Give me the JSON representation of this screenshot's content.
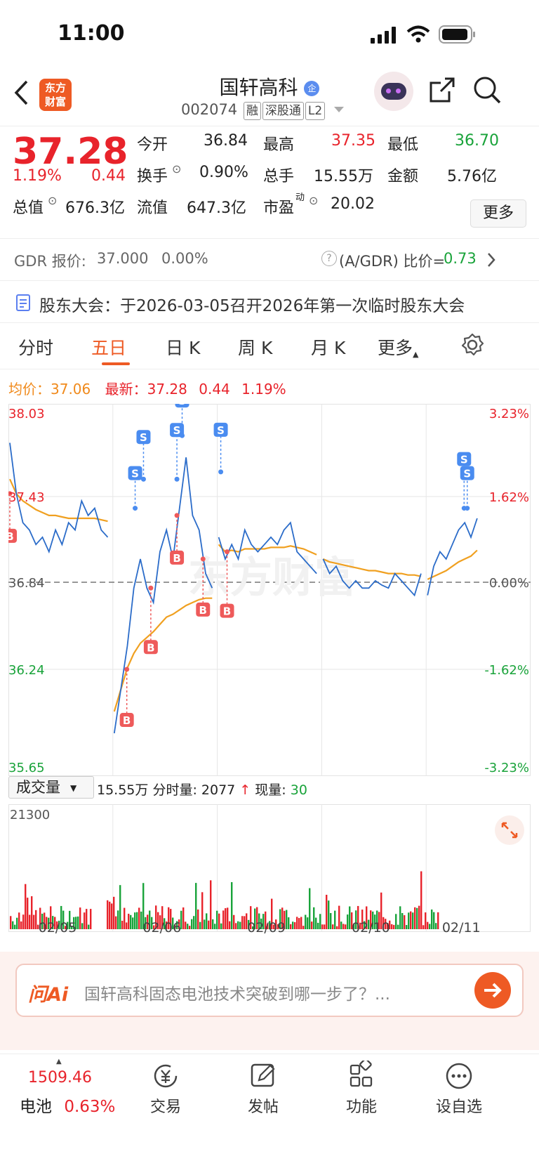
{
  "status": {
    "time": "11:00"
  },
  "nav": {
    "back_icon": "back-arrow-icon",
    "logo_text": "东方财富",
    "stock_name": "国轩高科",
    "stock_code": "002074",
    "tags": [
      "融",
      "深股通",
      "L2"
    ]
  },
  "quote": {
    "price": "37.28",
    "change_pct": "1.19%",
    "change": "0.44",
    "open_label": "今开",
    "open": "36.84",
    "high_label": "最高",
    "high": "37.35",
    "low_label": "最低",
    "low": "36.70",
    "turnover_label": "换手",
    "turnover": "0.90%",
    "vol_label": "总手",
    "vol": "15.55万",
    "amount_label": "金额",
    "amount": "5.76亿",
    "mktcap_label": "总值",
    "mktcap": "676.3亿",
    "float_label": "流值",
    "float": "647.3亿",
    "pe_label": "市盈",
    "pe_sup": "动",
    "pe": "20.02",
    "more_label": "更多"
  },
  "gdr": {
    "label": "GDR 报价:",
    "price": "37.000",
    "pct": "0.00%",
    "ratio_label": "(A/GDR) 比价=",
    "ratio": "0.73"
  },
  "notice": {
    "text": "股东大会：于2026-03-05召开2026年第一次临时股东大会"
  },
  "tabs": [
    "分时",
    "五日",
    "日 K",
    "周 K",
    "月 K",
    "更多"
  ],
  "chart_info": {
    "avg_label": "均价：",
    "avg": "37.06",
    "latest_label": "最新：",
    "latest": "37.28",
    "change": "0.44",
    "pct": "1.19%"
  },
  "chart_data": {
    "type": "line",
    "days": [
      "02/05",
      "02/06",
      "02/09",
      "02/10",
      "02/11"
    ],
    "y_left_ticks": [
      "38.03",
      "37.43",
      "36.84",
      "36.24",
      "35.65"
    ],
    "y_right_ticks": [
      "3.23%",
      "1.62%",
      "0.00%",
      "-1.62%",
      "-3.23%"
    ],
    "ylim": [
      35.65,
      38.03
    ],
    "prev_close": 36.84,
    "price_series": [
      37.8,
      37.45,
      37.25,
      37.2,
      37.1,
      37.15,
      37.05,
      37.2,
      37.1,
      37.25,
      37.2,
      37.4,
      37.3,
      37.35,
      37.2,
      37.15,
      35.8,
      36.1,
      36.4,
      36.8,
      37.0,
      36.8,
      36.7,
      37.05,
      37.2,
      37.0,
      37.35,
      37.7,
      37.3,
      37.2,
      36.9,
      36.8,
      37.15,
      37.0,
      37.1,
      37.0,
      37.2,
      37.1,
      37.05,
      37.1,
      37.15,
      37.1,
      37.2,
      37.25,
      37.05,
      37.0,
      36.95,
      36.9,
      37.0,
      36.9,
      36.95,
      36.85,
      36.8,
      36.85,
      36.8,
      36.8,
      36.85,
      36.82,
      36.8,
      36.9,
      36.85,
      36.8,
      36.75,
      36.9,
      36.75,
      36.95,
      37.05,
      37.0,
      37.1,
      37.2,
      37.25,
      37.15,
      37.28
    ],
    "avg_series": [
      37.55,
      37.45,
      37.4,
      37.37,
      37.34,
      37.32,
      37.3,
      37.3,
      37.29,
      37.28,
      37.28,
      37.28,
      37.28,
      37.28,
      37.27,
      37.26,
      35.95,
      36.1,
      36.25,
      36.35,
      36.42,
      36.46,
      36.5,
      36.55,
      36.6,
      36.62,
      36.65,
      36.68,
      36.7,
      36.72,
      36.73,
      36.73,
      37.1,
      37.05,
      37.06,
      37.05,
      37.07,
      37.07,
      37.07,
      37.07,
      37.08,
      37.08,
      37.08,
      37.09,
      37.08,
      37.07,
      37.05,
      37.03,
      37.0,
      36.98,
      36.97,
      36.96,
      36.95,
      36.94,
      36.93,
      36.92,
      36.92,
      36.91,
      36.9,
      36.9,
      36.9,
      36.89,
      36.89,
      36.88,
      36.86,
      36.88,
      36.9,
      36.92,
      36.95,
      36.98,
      37.0,
      37.02,
      37.06
    ],
    "markers": [
      {
        "type": "B",
        "day": 0,
        "frac": 0.0,
        "price": 37.45
      },
      {
        "type": "B",
        "day": 1,
        "frac": 0.12,
        "price": 36.24
      },
      {
        "type": "B",
        "day": 1,
        "frac": 0.35,
        "price": 36.8
      },
      {
        "type": "B",
        "day": 1,
        "frac": 0.6,
        "price": 37.3
      },
      {
        "type": "B",
        "day": 1,
        "frac": 0.85,
        "price": 37.0
      },
      {
        "type": "B",
        "day": 2,
        "frac": 0.08,
        "price": 37.05
      },
      {
        "type": "S",
        "day": 1,
        "frac": 0.2,
        "price": 37.35
      },
      {
        "type": "S",
        "day": 1,
        "frac": 0.28,
        "price": 37.55
      },
      {
        "type": "S",
        "day": 1,
        "frac": 0.6,
        "price": 37.55
      },
      {
        "type": "S",
        "day": 1,
        "frac": 0.65,
        "price": 37.85
      },
      {
        "type": "S",
        "day": 2,
        "frac": 0.02,
        "price": 37.6
      },
      {
        "type": "S",
        "day": 4,
        "frac": 0.35,
        "price": 37.35
      },
      {
        "type": "S",
        "day": 4,
        "frac": 0.38,
        "price": 37.35
      }
    ]
  },
  "volume": {
    "selector": "成交量",
    "total": "15.55万",
    "tick_label": "分时量:",
    "tick": "2077",
    "cur_label": "现量:",
    "cur": "30",
    "max": "21300"
  },
  "ai": {
    "logo": "问Ai",
    "placeholder": "国轩高科固态电池技术突破到哪一步了？..."
  },
  "tabbar": {
    "index_value": "1509.46",
    "index_name": "电池",
    "index_pct": "0.63%",
    "items": [
      {
        "label": "交易",
        "icon": "trade-icon"
      },
      {
        "label": "发帖",
        "icon": "edit-icon"
      },
      {
        "label": "功能",
        "icon": "grid-icon"
      },
      {
        "label": "设自选",
        "icon": "more-dots-icon"
      }
    ]
  },
  "colors": {
    "up": "#e8232b",
    "down": "#19a33a",
    "accent": "#ee5a24",
    "price_line": "#2b6cc9",
    "avg_line": "#f0a020"
  }
}
